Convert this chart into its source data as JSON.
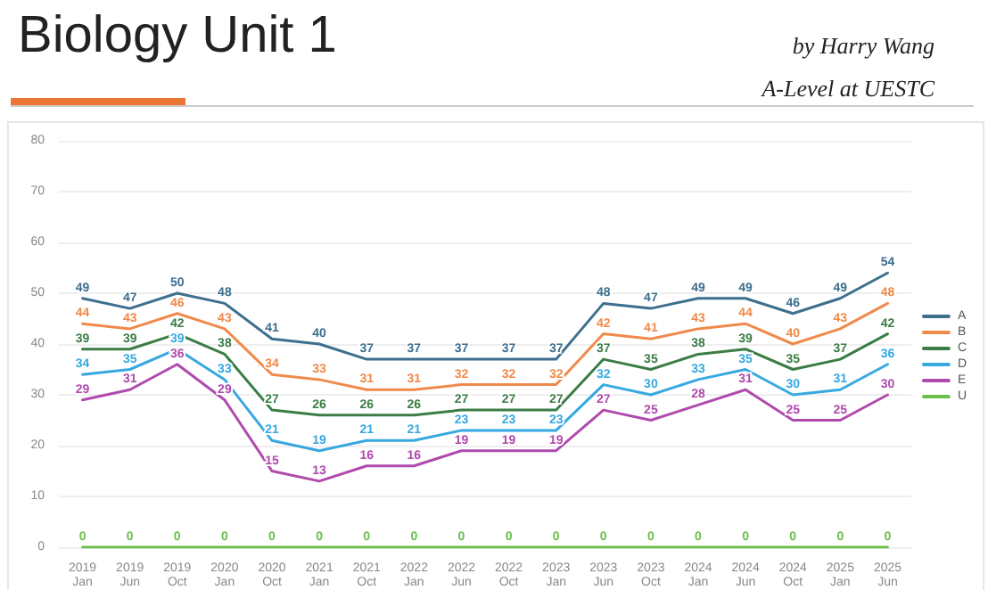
{
  "chart_data": {
    "type": "line",
    "title": "Biology Unit 1",
    "subtitle": "by Harry Wang",
    "annotations": [
      "A-Level at UESTC"
    ],
    "categories": [
      "2019\nJan",
      "2019\nJun",
      "2019\nOct",
      "2020\nJan",
      "2020\nOct",
      "2021\nJan",
      "2021\nOct",
      "2022\nJan",
      "2022\nJun",
      "2022\nOct",
      "2023\nJan",
      "2023\nJun",
      "2023\nOct",
      "2024\nJan",
      "2024\nJun",
      "2024\nOct",
      "2025\nJan",
      "2025\nJun"
    ],
    "series": [
      {
        "name": "A",
        "color": "#3d6f8e",
        "values": [
          49,
          47,
          50,
          48,
          41,
          40,
          37,
          37,
          37,
          37,
          37,
          48,
          47,
          49,
          49,
          46,
          49,
          54
        ]
      },
      {
        "name": "B",
        "color": "#f08a4b",
        "values": [
          44,
          43,
          46,
          43,
          34,
          33,
          31,
          31,
          32,
          32,
          32,
          42,
          41,
          43,
          44,
          40,
          43,
          48
        ]
      },
      {
        "name": "C",
        "color": "#3b7d45",
        "values": [
          39,
          39,
          42,
          38,
          27,
          26,
          26,
          26,
          27,
          27,
          27,
          37,
          35,
          38,
          39,
          35,
          37,
          42
        ]
      },
      {
        "name": "D",
        "color": "#36a9e1",
        "values": [
          34,
          35,
          39,
          33,
          21,
          19,
          21,
          21,
          23,
          23,
          23,
          32,
          30,
          33,
          35,
          30,
          31,
          36
        ]
      },
      {
        "name": "E",
        "color": "#b04aad",
        "values": [
          29,
          31,
          36,
          29,
          15,
          13,
          16,
          16,
          19,
          19,
          19,
          27,
          25,
          28,
          31,
          25,
          25,
          30
        ]
      },
      {
        "name": "U",
        "color": "#6abf4b",
        "values": [
          0,
          0,
          0,
          0,
          0,
          0,
          0,
          0,
          0,
          0,
          0,
          0,
          0,
          0,
          0,
          0,
          0,
          0
        ]
      }
    ],
    "ylim": [
      0,
      80
    ],
    "yticks": [
      0,
      10,
      20,
      30,
      40,
      50,
      60,
      70,
      80
    ],
    "grid": "y",
    "legend": "right",
    "data_labels": true,
    "marker": "none",
    "line_style": "solid"
  }
}
